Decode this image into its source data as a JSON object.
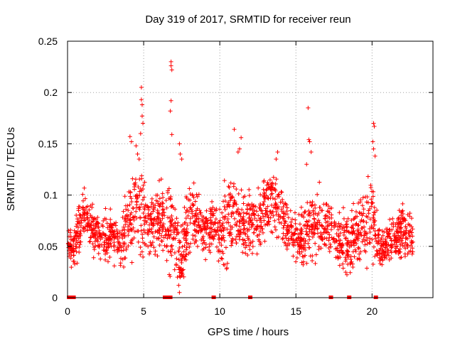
{
  "chart_data": {
    "type": "scatter",
    "title": "Day 319 of 2017, SRMTID for receiver reun",
    "xlabel": "GPS time / hours",
    "ylabel": "SRMTID / TECUs",
    "xlim": [
      0,
      24
    ],
    "ylim": [
      0,
      0.25
    ],
    "xticks": [
      0,
      5,
      10,
      15,
      20
    ],
    "yticks": [
      0,
      0.05,
      0.1,
      0.15,
      0.2,
      0.25
    ],
    "ytick_labels": [
      "0",
      "0.05",
      "0.1",
      "0.15",
      "0.2",
      "0.25"
    ],
    "grid": true,
    "marker": "+",
    "marker_color": "#ff0000",
    "series": [
      {
        "name": "SRMTID",
        "points_per_hour": 90,
        "profile_hours": [
          0,
          0.5,
          1,
          1.5,
          2,
          2.5,
          3,
          3.5,
          4,
          4.5,
          5,
          5.5,
          6,
          6.5,
          7,
          7.5,
          8,
          8.5,
          9,
          9.5,
          10,
          10.5,
          11,
          11.5,
          12,
          12.5,
          13,
          13.5,
          14,
          14.5,
          15,
          15.5,
          16,
          16.5,
          17,
          17.5,
          18,
          18.5,
          19,
          19.5,
          20,
          20.5,
          21,
          21.5,
          22,
          22.5
        ],
        "profile_median": [
          0.055,
          0.05,
          0.08,
          0.07,
          0.06,
          0.055,
          0.06,
          0.05,
          0.075,
          0.09,
          0.08,
          0.07,
          0.075,
          0.07,
          0.06,
          0.035,
          0.08,
          0.075,
          0.065,
          0.07,
          0.06,
          0.07,
          0.085,
          0.07,
          0.075,
          0.07,
          0.09,
          0.095,
          0.09,
          0.065,
          0.055,
          0.06,
          0.07,
          0.075,
          0.07,
          0.06,
          0.055,
          0.05,
          0.065,
          0.075,
          0.08,
          0.05,
          0.055,
          0.06,
          0.065,
          0.06
        ],
        "profile_spread": [
          0.015,
          0.02,
          0.025,
          0.02,
          0.02,
          0.02,
          0.02,
          0.02,
          0.03,
          0.035,
          0.04,
          0.025,
          0.025,
          0.03,
          0.035,
          0.035,
          0.03,
          0.025,
          0.02,
          0.02,
          0.02,
          0.04,
          0.03,
          0.025,
          0.025,
          0.025,
          0.025,
          0.025,
          0.03,
          0.02,
          0.02,
          0.03,
          0.03,
          0.025,
          0.025,
          0.02,
          0.025,
          0.025,
          0.025,
          0.03,
          0.04,
          0.02,
          0.02,
          0.02,
          0.025,
          0.02
        ],
        "outliers": [
          [
            4.1,
            0.157
          ],
          [
            4.2,
            0.152
          ],
          [
            4.5,
            0.148
          ],
          [
            4.6,
            0.14
          ],
          [
            4.7,
            0.135
          ],
          [
            4.85,
            0.205
          ],
          [
            4.85,
            0.193
          ],
          [
            4.9,
            0.188
          ],
          [
            4.9,
            0.177
          ],
          [
            4.95,
            0.17
          ],
          [
            4.8,
            0.16
          ],
          [
            6.8,
            0.23
          ],
          [
            6.8,
            0.226
          ],
          [
            6.85,
            0.222
          ],
          [
            6.8,
            0.192
          ],
          [
            6.75,
            0.182
          ],
          [
            6.85,
            0.159
          ],
          [
            7.35,
            0.15
          ],
          [
            7.4,
            0.14
          ],
          [
            7.5,
            0.135
          ],
          [
            10.95,
            0.164
          ],
          [
            11.2,
            0.142
          ],
          [
            11.4,
            0.156
          ],
          [
            11.3,
            0.145
          ],
          [
            13.7,
            0.135
          ],
          [
            13.8,
            0.142
          ],
          [
            15.8,
            0.185
          ],
          [
            15.85,
            0.154
          ],
          [
            15.9,
            0.152
          ],
          [
            16.0,
            0.142
          ],
          [
            15.7,
            0.13
          ],
          [
            20.1,
            0.17
          ],
          [
            20.15,
            0.167
          ],
          [
            20.05,
            0.152
          ],
          [
            20.1,
            0.145
          ],
          [
            20.2,
            0.138
          ],
          [
            7.3,
            0.012
          ],
          [
            7.35,
            0.005
          ],
          [
            7.4,
            0.02
          ],
          [
            7.45,
            0.028
          ]
        ]
      }
    ],
    "zero_markers": [
      0.1,
      0.2,
      0.3,
      0.4,
      6.4,
      6.6,
      6.75,
      9.6,
      12.0,
      17.3,
      18.5,
      20.25
    ]
  }
}
